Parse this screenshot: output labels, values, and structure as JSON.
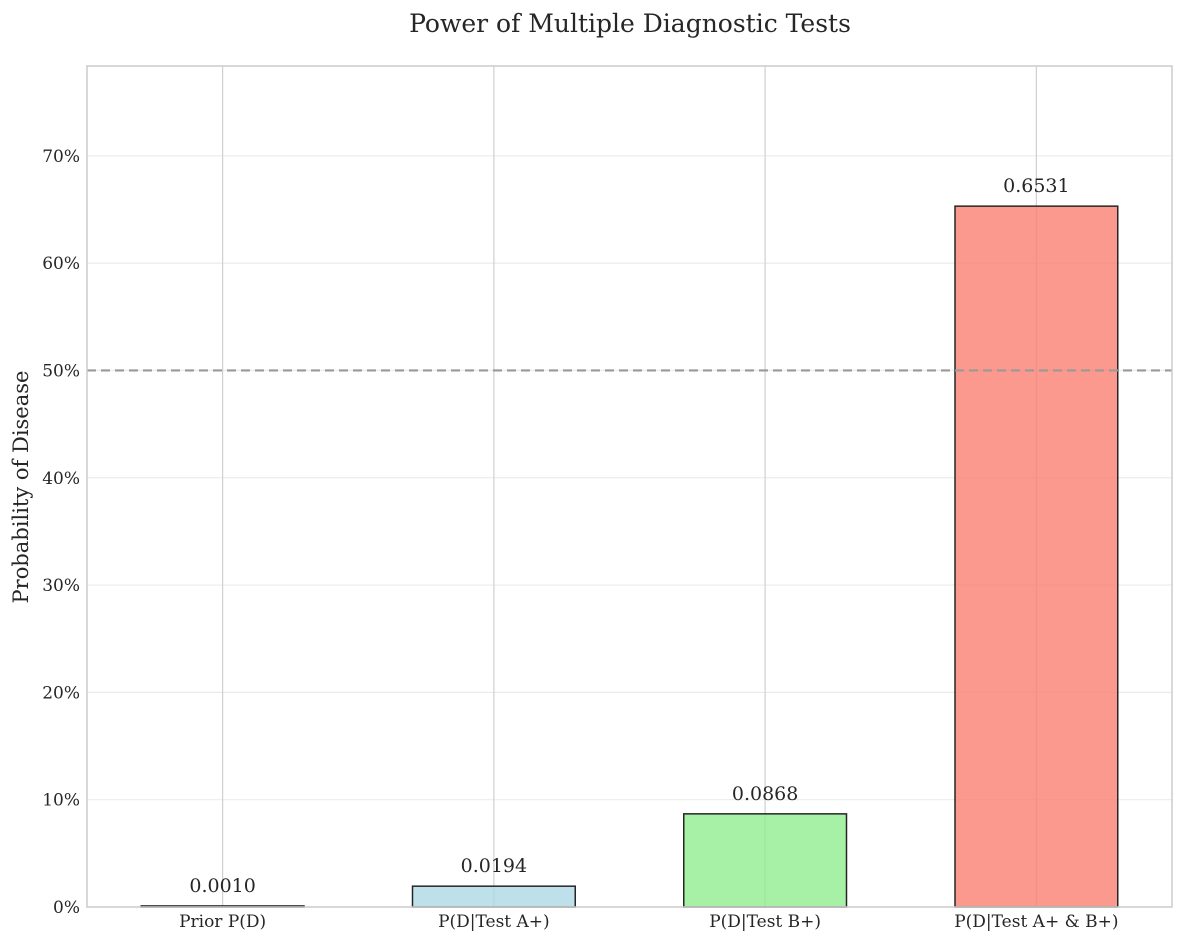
{
  "chart_data": {
    "type": "bar",
    "title": "Power of Multiple Diagnostic Tests",
    "xlabel": "",
    "ylabel": "Probability of Disease",
    "categories": [
      "Prior P(D)",
      "P(D|Test A+)",
      "P(D|Test B+)",
      "P(D|Test A+ & B+)"
    ],
    "values": [
      0.001,
      0.0194,
      0.0868,
      0.6531
    ],
    "value_labels": [
      "0.0010",
      "0.0194",
      "0.0868",
      "0.6531"
    ],
    "bar_colors": [
      "#add8e6",
      "#add8e6",
      "#90ee90",
      "#fa8072"
    ],
    "ylim": [
      0,
      0.7837
    ],
    "yticks": [
      0,
      0.1,
      0.2,
      0.3,
      0.4,
      0.5,
      0.6,
      0.7
    ],
    "ytick_labels": [
      "0%",
      "10%",
      "20%",
      "30%",
      "40%",
      "50%",
      "60%",
      "70%"
    ],
    "reference_line": {
      "y": 0.5,
      "style": "dashed",
      "color": "#999999"
    },
    "grid": true,
    "legend": "none"
  }
}
